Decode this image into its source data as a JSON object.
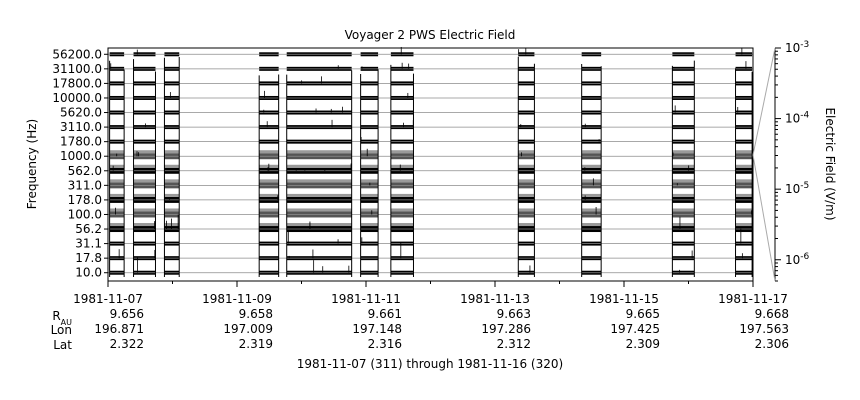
{
  "chart_data": {
    "type": "heatmap",
    "title": "Voyager 2 PWS Electric Field",
    "ylabel": "Frequency (Hz)",
    "colorbar_label": "Electric Field (V/m)",
    "colorbar_ticks": [
      {
        "value": 0.001,
        "base": "10",
        "exp": "-3"
      },
      {
        "value": 0.0001,
        "base": "10",
        "exp": "-4"
      },
      {
        "value": 1e-05,
        "base": "10",
        "exp": "-5"
      },
      {
        "value": 1e-06,
        "base": "10",
        "exp": "-6"
      }
    ],
    "colorbar_range": [
      5e-07,
      0.001
    ],
    "colorbar_scale": "log",
    "xrange": [
      "1981-11-07",
      "1981-11-17"
    ],
    "subtitle": "1981-11-07 (311) through 1981-11-16 (320)",
    "x_ticks": [
      {
        "date": "1981-11-07",
        "r_au": "9.656",
        "lon": "196.871",
        "lat": "2.322"
      },
      {
        "date": "1981-11-09",
        "r_au": "9.658",
        "lon": "197.009",
        "lat": "2.319"
      },
      {
        "date": "1981-11-11",
        "r_au": "9.661",
        "lon": "197.148",
        "lat": "2.316"
      },
      {
        "date": "1981-11-13",
        "r_au": "9.663",
        "lon": "197.286",
        "lat": "2.312"
      },
      {
        "date": "1981-11-15",
        "r_au": "9.665",
        "lon": "197.425",
        "lat": "2.309"
      },
      {
        "date": "1981-11-17",
        "r_au": "9.668",
        "lon": "197.563",
        "lat": "2.306"
      }
    ],
    "row_labels": {
      "r_au": "R",
      "r_au_sub": "AU",
      "lon": "Lon",
      "lat": "Lat"
    },
    "channels": [
      "10.0",
      "17.8",
      "31.1",
      "56.2",
      "100.0",
      "178.0",
      "311.0",
      "562.0",
      "1000.0",
      "1780.0",
      "3110.0",
      "5620.0",
      "10000.0",
      "17800.0",
      "31100.0",
      "56200.0"
    ],
    "data_intervals": [
      [
        "1981-11-07T00:36",
        "1981-11-07T06:00"
      ],
      [
        "1981-11-07T09:30",
        "1981-11-07T17:40"
      ],
      [
        "1981-11-07T21:00",
        "1981-11-08T02:30"
      ],
      [
        "1981-11-09T08:15",
        "1981-11-09T15:30"
      ],
      [
        "1981-11-09T18:30",
        "1981-11-10T18:40"
      ],
      [
        "1981-11-10T22:00",
        "1981-11-11T04:30"
      ],
      [
        "1981-11-11T09:15",
        "1981-11-11T17:40"
      ],
      [
        "1981-11-13T08:40",
        "1981-11-13T14:40"
      ],
      [
        "1981-11-14T08:15",
        "1981-11-14T15:30"
      ],
      [
        "1981-11-15T18:00",
        "1981-11-16T02:10"
      ],
      [
        "1981-11-16T17:30",
        "1981-11-16T23:40"
      ]
    ]
  }
}
